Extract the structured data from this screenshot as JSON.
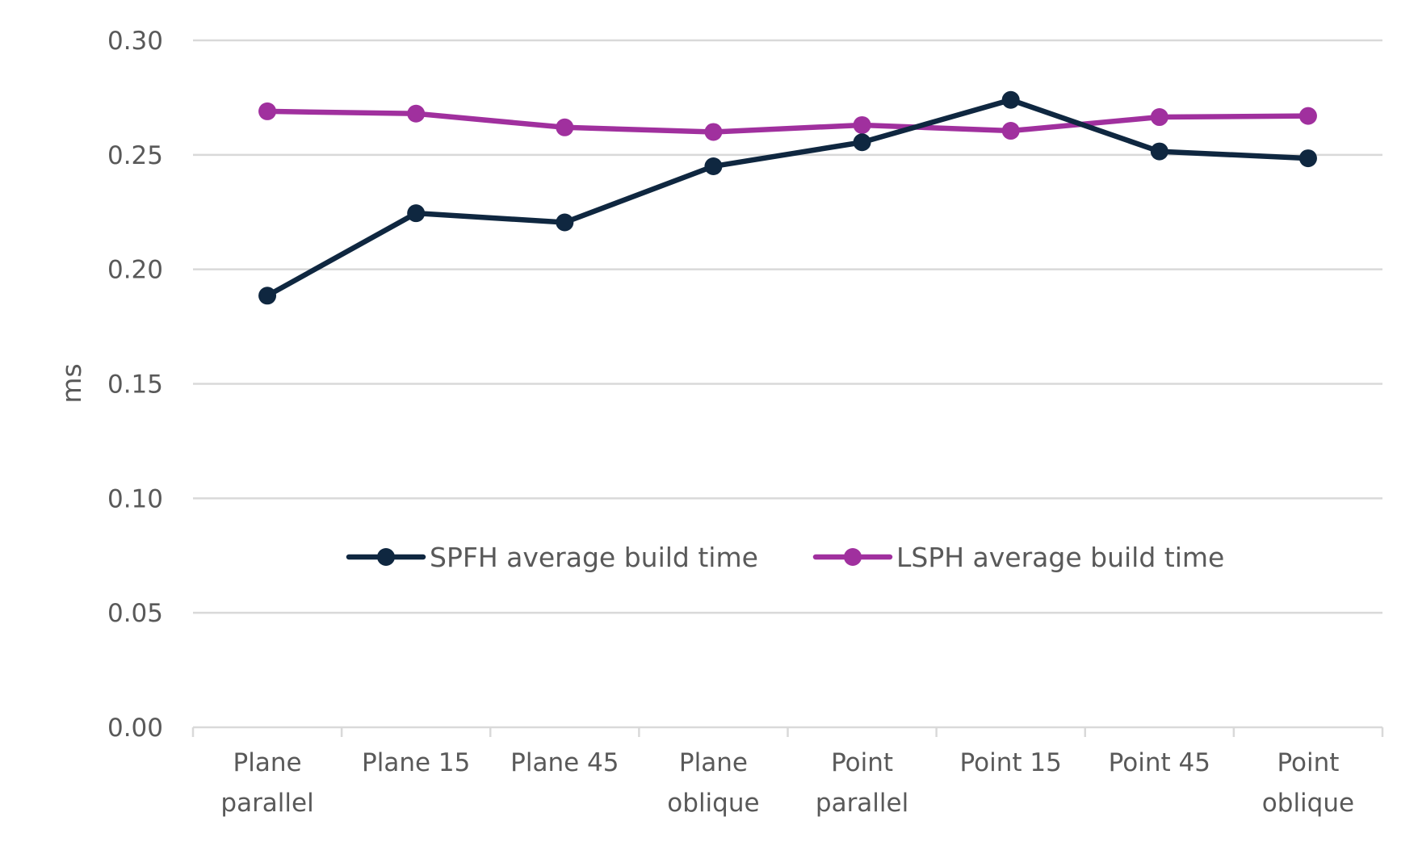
{
  "chart_data": {
    "type": "line",
    "title": "",
    "xlabel": "",
    "ylabel": "ms",
    "ylim": [
      0,
      0.3
    ],
    "yticks": [
      0,
      0.05,
      0.1,
      0.15,
      0.2,
      0.25,
      0.3
    ],
    "ytick_labels": [
      "0.00",
      "0.05",
      "0.10",
      "0.15",
      "0.20",
      "0.25",
      "0.30"
    ],
    "grid": true,
    "legend_position": "center",
    "categories": [
      [
        "Plane",
        "parallel"
      ],
      [
        "Plane 15"
      ],
      [
        "Plane 45"
      ],
      [
        "Plane",
        "oblique"
      ],
      [
        "Point",
        "parallel"
      ],
      [
        "Point 15"
      ],
      [
        "Point 45"
      ],
      [
        "Point",
        "oblique"
      ]
    ],
    "series": [
      {
        "name": "SPFH average build time",
        "color": "#0f2740",
        "values": [
          0.1885,
          0.2245,
          0.2205,
          0.245,
          0.2555,
          0.274,
          0.2515,
          0.2485
        ]
      },
      {
        "name": "LSPH average build time",
        "color": "#a0309e",
        "values": [
          0.269,
          0.268,
          0.262,
          0.26,
          0.263,
          0.2605,
          0.2665,
          0.267
        ]
      }
    ]
  }
}
